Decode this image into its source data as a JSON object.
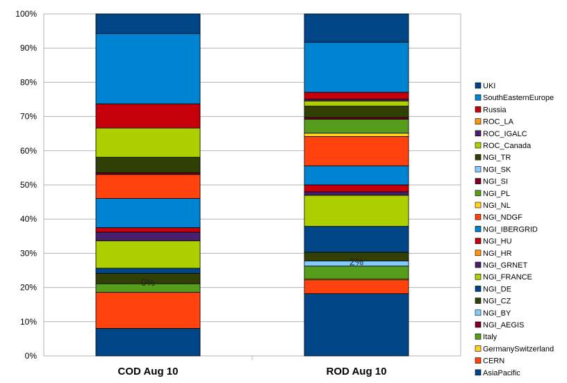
{
  "chart_data": {
    "type": "bar",
    "stacked": true,
    "percent": true,
    "title": "",
    "xlabel": "",
    "ylabel": "",
    "ylim": [
      0,
      100
    ],
    "yticks": [
      "0%",
      "10%",
      "20%",
      "30%",
      "40%",
      "50%",
      "60%",
      "70%",
      "80%",
      "90%",
      "100%"
    ],
    "categories": [
      "COD Aug 10",
      "ROD Aug 10"
    ],
    "grid": "horizontal",
    "legend_position": "right",
    "annotations": [
      {
        "category": "COD Aug 10",
        "text": "0%",
        "y": 21.5
      },
      {
        "category": "ROD Aug 10",
        "text": "2%",
        "y": 27.5
      }
    ],
    "series": [
      {
        "name": "AsiaPacific",
        "color": "#004586",
        "values": [
          8,
          18
        ]
      },
      {
        "name": "CERN",
        "color": "#ff420e",
        "values": [
          10.5,
          4
        ]
      },
      {
        "name": "GermanySwitzerland",
        "color": "#ffd320",
        "values": [
          0,
          0.3
        ]
      },
      {
        "name": "Italy",
        "color": "#579d1c",
        "values": [
          2.5,
          3.7
        ]
      },
      {
        "name": "NGI_AEGIS",
        "color": "#7e0021",
        "values": [
          0,
          0
        ]
      },
      {
        "name": "NGI_BY",
        "color": "#83caff",
        "values": [
          0,
          1.5
        ]
      },
      {
        "name": "NGI_CZ",
        "color": "#314004",
        "values": [
          3,
          2.5
        ]
      },
      {
        "name": "NGI_DE",
        "color": "#004586",
        "values": [
          1.5,
          7.5
        ]
      },
      {
        "name": "NGI_FRANCE",
        "color": "#aecf00",
        "values": [
          8,
          9
        ]
      },
      {
        "name": "NGI_GRNET",
        "color": "#4b1f6f",
        "values": [
          2.5,
          1
        ]
      },
      {
        "name": "NGI_HR",
        "color": "#ff950e",
        "values": [
          0,
          0
        ]
      },
      {
        "name": "NGI_HU",
        "color": "#c5000b",
        "values": [
          1.3,
          2
        ]
      },
      {
        "name": "NGI_IBERGRID",
        "color": "#0084d1",
        "values": [
          8.5,
          5.5
        ]
      },
      {
        "name": "NGI_NDGF",
        "color": "#ff420e",
        "values": [
          7,
          8.5
        ]
      },
      {
        "name": "NGI_NL",
        "color": "#ffd320",
        "values": [
          0,
          1
        ]
      },
      {
        "name": "NGI_PL",
        "color": "#579d1c",
        "values": [
          0,
          4
        ]
      },
      {
        "name": "NGI_SI",
        "color": "#7e0021",
        "values": [
          0.5,
          0.5
        ]
      },
      {
        "name": "NGI_SK",
        "color": "#83caff",
        "values": [
          0,
          0
        ]
      },
      {
        "name": "NGI_TR",
        "color": "#314004",
        "values": [
          4.5,
          3.3
        ]
      },
      {
        "name": "ROC_Canada",
        "color": "#aecf00",
        "values": [
          8.5,
          1.5
        ]
      },
      {
        "name": "ROC_IGALC",
        "color": "#4b1f6f",
        "values": [
          0,
          0.5
        ]
      },
      {
        "name": "ROC_LA",
        "color": "#ff950e",
        "values": [
          0,
          0
        ]
      },
      {
        "name": "Russia",
        "color": "#c5000b",
        "values": [
          7,
          2
        ]
      },
      {
        "name": "SouthEasternEurope",
        "color": "#0084d1",
        "values": [
          20.5,
          14.5
        ]
      },
      {
        "name": "UKI",
        "color": "#004586",
        "values": [
          5.7,
          8.2
        ]
      }
    ]
  }
}
